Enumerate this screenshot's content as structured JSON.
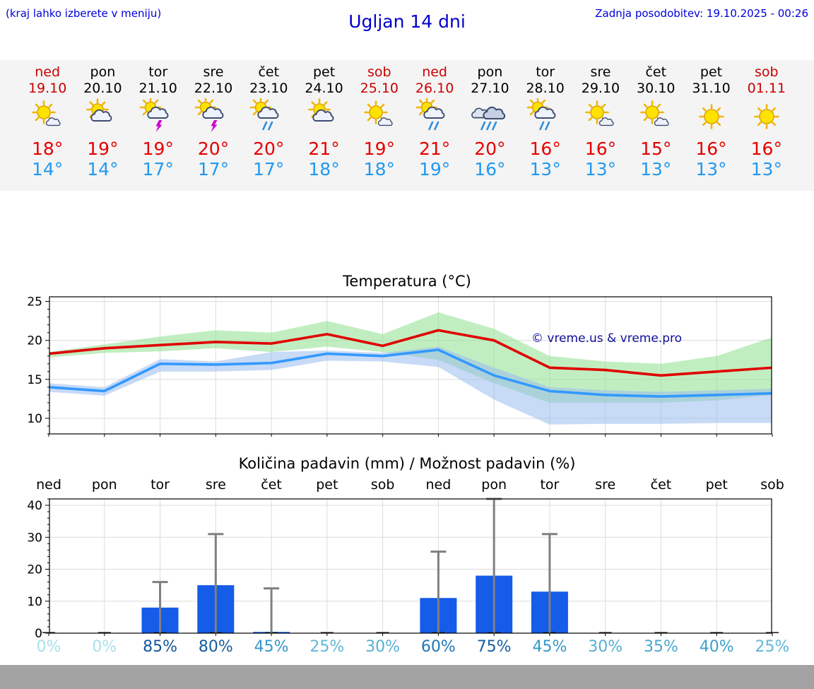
{
  "header": {
    "hint": "(kraj lahko izberete v meniju)",
    "title": "Ugljan 14 dni",
    "updated": "Zadnja posodobitev: 19.10.2025 - 00:26"
  },
  "colors": {
    "weekend": "#cc0000",
    "weekday": "#000000",
    "temp_high": "#e60000",
    "temp_low": "#2299ee",
    "link_blue": "#0000dd"
  },
  "forecast": {
    "days": [
      {
        "name": "ned",
        "date": "19.10",
        "weekend": true,
        "icon": "mostly-sunny",
        "high": "18°",
        "low": "14°"
      },
      {
        "name": "pon",
        "date": "20.10",
        "weekend": false,
        "icon": "partly-cloudy",
        "high": "19°",
        "low": "14°"
      },
      {
        "name": "tor",
        "date": "21.10",
        "weekend": false,
        "icon": "thunderstorm",
        "high": "19°",
        "low": "17°"
      },
      {
        "name": "sre",
        "date": "22.10",
        "weekend": false,
        "icon": "thunderstorm",
        "high": "20°",
        "low": "17°"
      },
      {
        "name": "čet",
        "date": "23.10",
        "weekend": false,
        "icon": "rain-showers",
        "high": "20°",
        "low": "17°"
      },
      {
        "name": "pet",
        "date": "24.10",
        "weekend": false,
        "icon": "partly-cloudy",
        "high": "21°",
        "low": "18°"
      },
      {
        "name": "sob",
        "date": "25.10",
        "weekend": true,
        "icon": "mostly-sunny",
        "high": "19°",
        "low": "18°"
      },
      {
        "name": "ned",
        "date": "26.10",
        "weekend": true,
        "icon": "rain-showers",
        "high": "21°",
        "low": "19°"
      },
      {
        "name": "pon",
        "date": "27.10",
        "weekend": false,
        "icon": "rain",
        "high": "20°",
        "low": "16°"
      },
      {
        "name": "tor",
        "date": "28.10",
        "weekend": false,
        "icon": "rain-showers",
        "high": "16°",
        "low": "13°"
      },
      {
        "name": "sre",
        "date": "29.10",
        "weekend": false,
        "icon": "mostly-sunny",
        "high": "16°",
        "low": "13°"
      },
      {
        "name": "čet",
        "date": "30.10",
        "weekend": false,
        "icon": "mostly-sunny",
        "high": "15°",
        "low": "13°"
      },
      {
        "name": "pet",
        "date": "31.10",
        "weekend": false,
        "icon": "sunny",
        "high": "16°",
        "low": "13°"
      },
      {
        "name": "sob",
        "date": "01.11",
        "weekend": true,
        "icon": "sunny",
        "high": "16°",
        "low": "13°"
      }
    ]
  },
  "chart_data": [
    {
      "type": "line",
      "title": "Temperatura (°C)",
      "categories": [
        "ned",
        "pon",
        "tor",
        "sre",
        "čet",
        "pet",
        "sob",
        "ned",
        "pon",
        "tor",
        "sre",
        "čet",
        "pet",
        "sob"
      ],
      "ylim": [
        8,
        25.6
      ],
      "yticks": [
        10,
        15,
        20,
        25
      ],
      "grid": true,
      "watermark": "© vreme.us & vreme.pro",
      "series": [
        {
          "name": "max",
          "color": "#e00000",
          "values": [
            18.3,
            19.0,
            19.4,
            19.8,
            19.6,
            20.8,
            19.3,
            21.3,
            20.0,
            16.5,
            16.2,
            15.5,
            16.0,
            16.5
          ]
        },
        {
          "name": "min",
          "color": "#3399ff",
          "values": [
            14.0,
            13.5,
            17.0,
            16.9,
            17.1,
            18.3,
            18.0,
            18.8,
            15.5,
            13.5,
            13.0,
            12.8,
            13.0,
            13.2
          ]
        }
      ],
      "bands": [
        {
          "name": "max-range",
          "color": "#8ee08e",
          "upper": [
            18.5,
            19.5,
            20.5,
            21.3,
            21.0,
            22.5,
            20.8,
            23.6,
            21.5,
            18.0,
            17.3,
            17.0,
            18.0,
            20.4
          ],
          "lower": [
            17.8,
            18.4,
            18.6,
            19.0,
            18.5,
            19.2,
            18.5,
            17.5,
            14.5,
            12.0,
            12.0,
            12.0,
            12.3,
            13.0
          ]
        },
        {
          "name": "min-range",
          "color": "#99bbee",
          "upper": [
            14.5,
            14.0,
            17.6,
            17.3,
            18.5,
            18.7,
            18.4,
            19.2,
            16.5,
            14.0,
            13.6,
            13.4,
            13.6,
            13.8
          ],
          "lower": [
            13.4,
            12.9,
            16.0,
            16.0,
            16.2,
            17.4,
            17.3,
            16.6,
            12.4,
            9.2,
            9.3,
            9.3,
            9.4,
            9.4
          ]
        }
      ]
    },
    {
      "type": "bar",
      "title": "Količina padavin (mm) / Možnost padavin (%)",
      "categories": [
        "ned",
        "pon",
        "tor",
        "sre",
        "čet",
        "pet",
        "sob",
        "ned",
        "pon",
        "tor",
        "sre",
        "čet",
        "pet",
        "sob"
      ],
      "ylim": [
        0,
        42
      ],
      "yticks": [
        0,
        10,
        20,
        30,
        40
      ],
      "ylabel": "mm",
      "bar_color": "#155ce8",
      "whisker_color": "#808080",
      "values": [
        0,
        0,
        8,
        15,
        0.4,
        0,
        0,
        11,
        18,
        13,
        0,
        0,
        0,
        0
      ],
      "whisker_max": [
        0,
        0,
        16,
        31,
        14,
        0,
        0,
        25.5,
        42,
        31,
        0,
        0,
        0,
        0
      ],
      "probabilities": [
        {
          "label": "0%",
          "value": 0,
          "color": "#a8e0ec"
        },
        {
          "label": "0%",
          "value": 0,
          "color": "#a8e0ec"
        },
        {
          "label": "85%",
          "value": 85,
          "color": "#12579c"
        },
        {
          "label": "80%",
          "value": 80,
          "color": "#155ba0"
        },
        {
          "label": "45%",
          "value": 45,
          "color": "#3498c8"
        },
        {
          "label": "25%",
          "value": 25,
          "color": "#62b8d8"
        },
        {
          "label": "30%",
          "value": 30,
          "color": "#56b0d4"
        },
        {
          "label": "60%",
          "value": 60,
          "color": "#2276b4"
        },
        {
          "label": "75%",
          "value": 75,
          "color": "#185fa4"
        },
        {
          "label": "45%",
          "value": 45,
          "color": "#3498c8"
        },
        {
          "label": "30%",
          "value": 30,
          "color": "#56b0d4"
        },
        {
          "label": "35%",
          "value": 35,
          "color": "#4aa8d0"
        },
        {
          "label": "40%",
          "value": 40,
          "color": "#3ea0cc"
        },
        {
          "label": "25%",
          "value": 25,
          "color": "#62b8d8"
        }
      ]
    }
  ]
}
